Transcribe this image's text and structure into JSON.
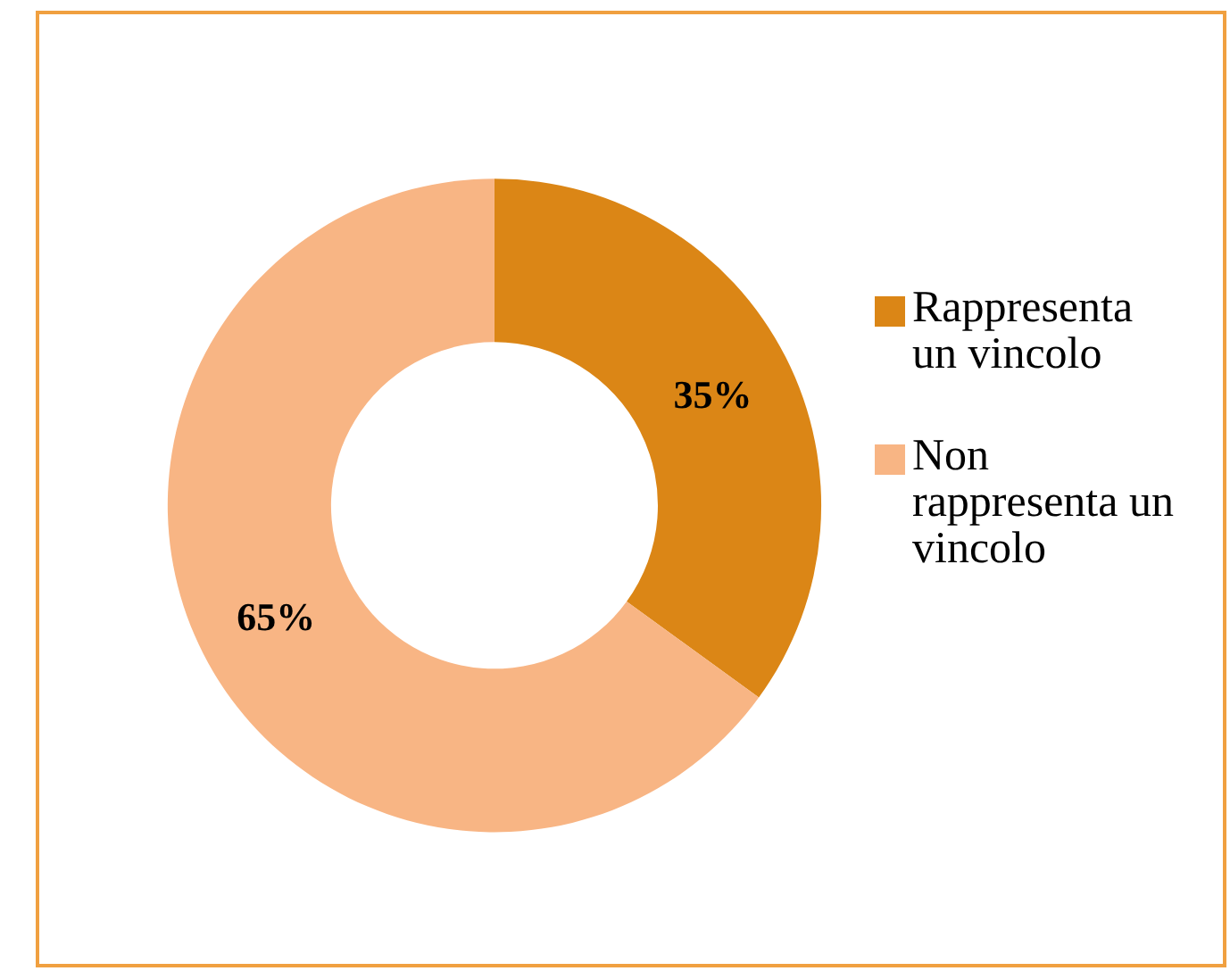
{
  "chart_data": {
    "type": "donut",
    "categories": [
      "Rappresenta un vincolo",
      "Non rappresenta un vincolo"
    ],
    "values": [
      35,
      65
    ],
    "colors": [
      "#db8616",
      "#f8b584"
    ],
    "value_labels": [
      "35%",
      "65%"
    ],
    "legend": "right"
  }
}
